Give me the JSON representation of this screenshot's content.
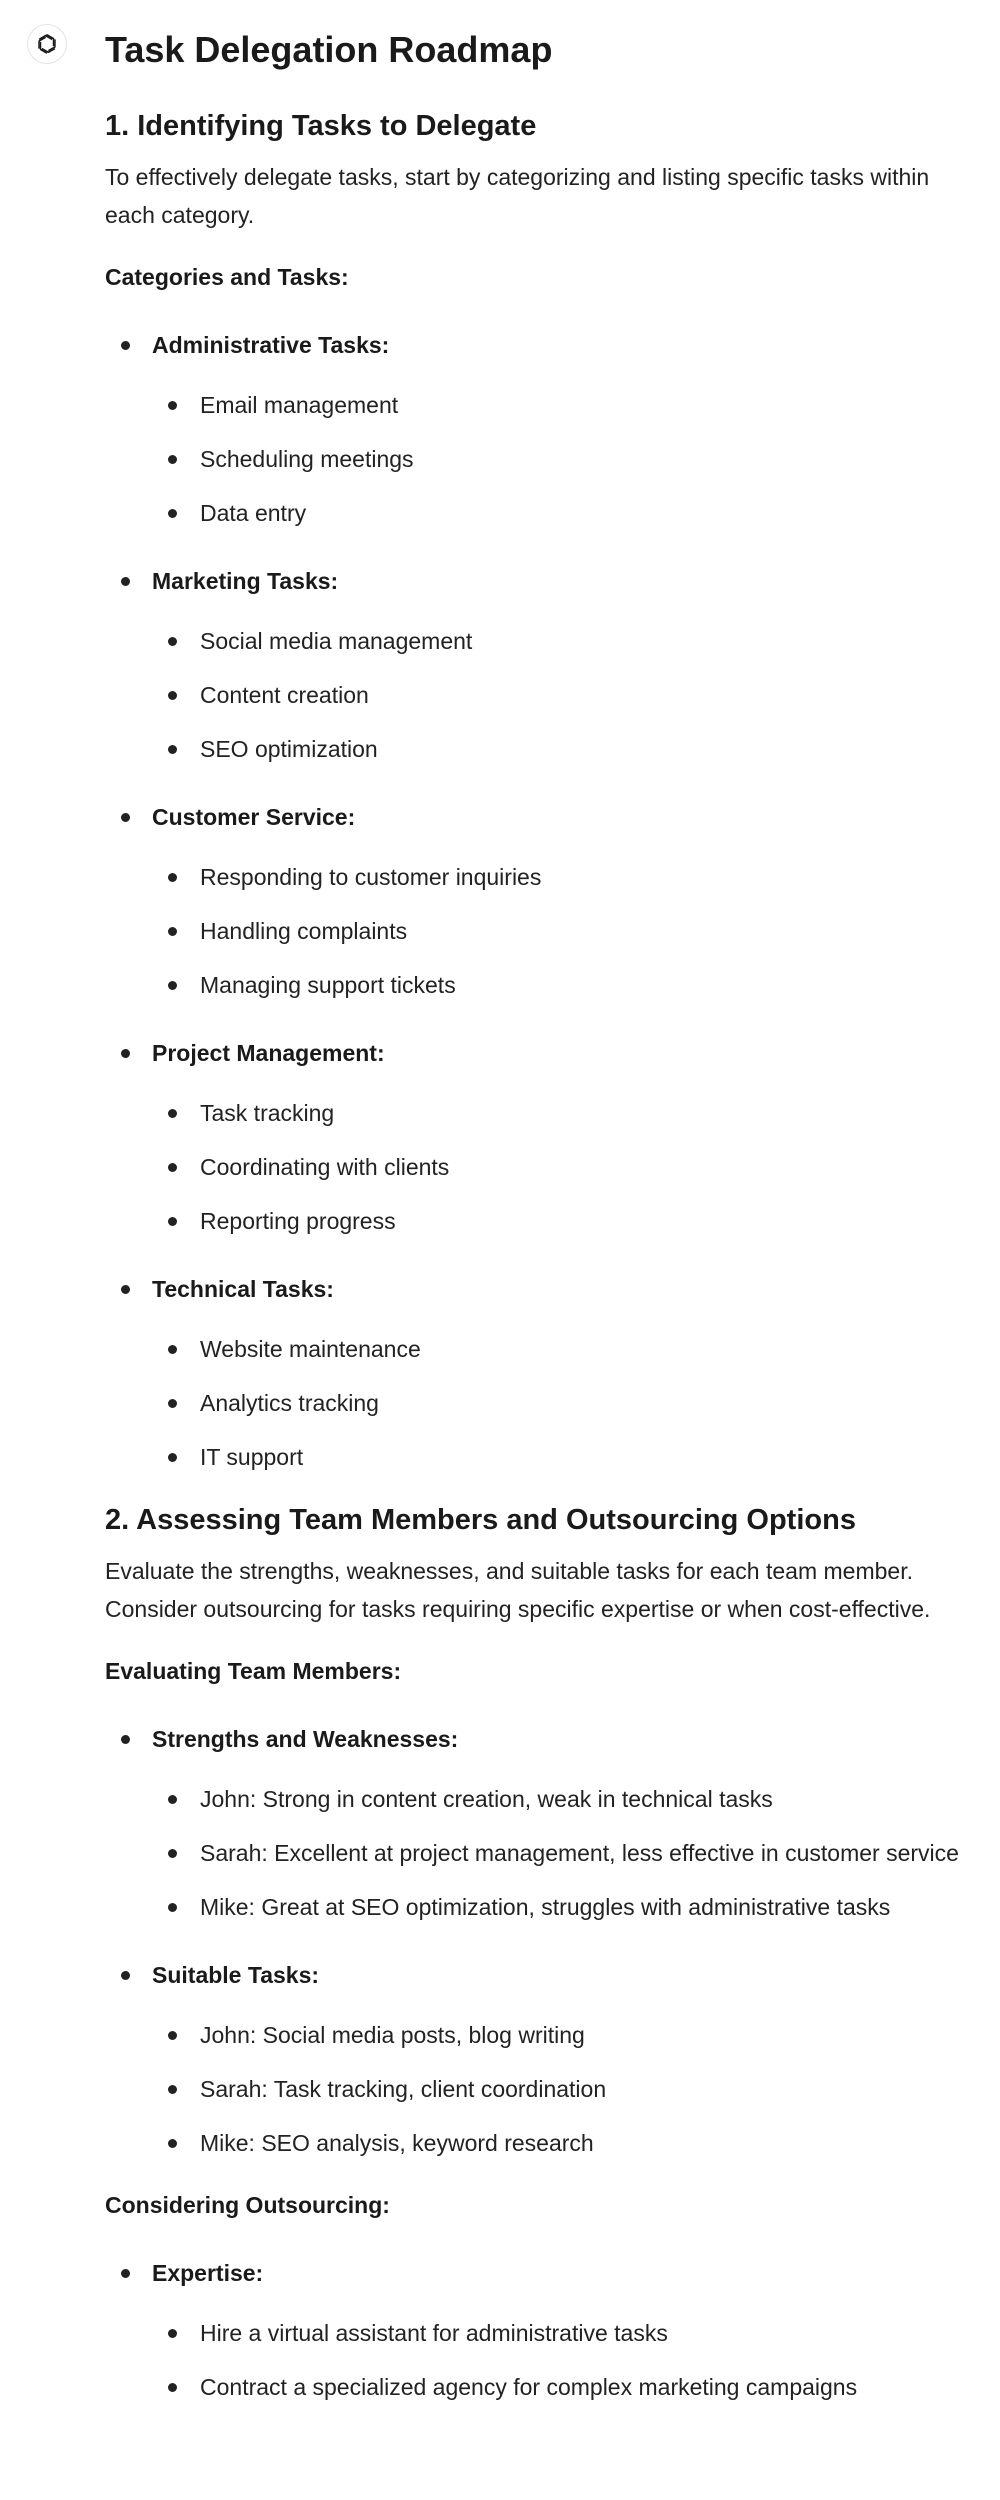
{
  "document": {
    "title": "Task Delegation Roadmap"
  },
  "sections": [
    {
      "heading": "1. Identifying Tasks to Delegate",
      "intro": "To effectively delegate tasks, start by categorizing and listing specific tasks within each category.",
      "groups": [
        {
          "subheading": "Categories and Tasks:",
          "categories": [
            {
              "label": "Administrative Tasks:",
              "items": [
                "Email management",
                "Scheduling meetings",
                "Data entry"
              ]
            },
            {
              "label": "Marketing Tasks:",
              "items": [
                "Social media management",
                "Content creation",
                "SEO optimization"
              ]
            },
            {
              "label": "Customer Service:",
              "items": [
                "Responding to customer inquiries",
                "Handling complaints",
                "Managing support tickets"
              ]
            },
            {
              "label": "Project Management:",
              "items": [
                "Task tracking",
                "Coordinating with clients",
                "Reporting progress"
              ]
            },
            {
              "label": "Technical Tasks:",
              "items": [
                "Website maintenance",
                "Analytics tracking",
                "IT support"
              ]
            }
          ]
        }
      ]
    },
    {
      "heading": "2. Assessing Team Members and Outsourcing Options",
      "intro": "Evaluate the strengths, weaknesses, and suitable tasks for each team member. Consider outsourcing for tasks requiring specific expertise or when cost-effective.",
      "groups": [
        {
          "subheading": "Evaluating Team Members:",
          "categories": [
            {
              "label": "Strengths and Weaknesses:",
              "items": [
                "John: Strong in content creation, weak in technical tasks",
                "Sarah: Excellent at project management, less effective in customer service",
                "Mike: Great at SEO optimization, struggles with administrative tasks"
              ]
            },
            {
              "label": "Suitable Tasks:",
              "items": [
                "John: Social media posts, blog writing",
                "Sarah: Task tracking, client coordination",
                "Mike: SEO analysis, keyword research"
              ]
            }
          ]
        },
        {
          "subheading": "Considering Outsourcing:",
          "categories": [
            {
              "label": "Expertise:",
              "items": [
                "Hire a virtual assistant for administrative tasks",
                "Contract a specialized agency for complex marketing campaigns"
              ]
            }
          ]
        }
      ]
    }
  ]
}
